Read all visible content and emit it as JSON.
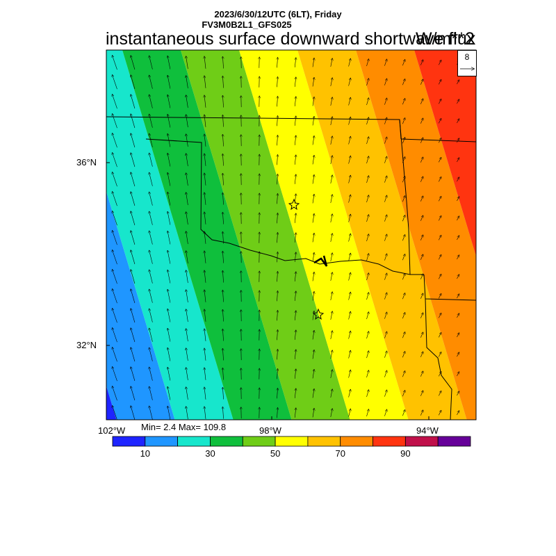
{
  "header": {
    "datetime": "2023/6/30/12UTC (6LT), Friday",
    "model": "FV3M0B2L1_GFS025",
    "title": "instantaneous surface downward shortwave flux",
    "unit": "W/m**2"
  },
  "map": {
    "lat_labels": [
      "36°N",
      "32°N"
    ],
    "lon_labels": [
      "102°W",
      "98°W",
      "94°W"
    ],
    "stats": "Min= 2.4 Max= 109.8",
    "reference_vector": "8",
    "markers": [
      "star",
      "star"
    ]
  },
  "colorbar": {
    "colors": [
      "#1e24ff",
      "#1f96ff",
      "#17e6cc",
      "#0fbf3c",
      "#6fcd17",
      "#ffff00",
      "#ffc200",
      "#ff8c00",
      "#ff3410",
      "#c0104a",
      "#660099"
    ],
    "labels": [
      "10",
      "30",
      "50",
      "70",
      "90"
    ],
    "values": [
      10,
      30,
      50,
      70,
      90
    ]
  }
}
